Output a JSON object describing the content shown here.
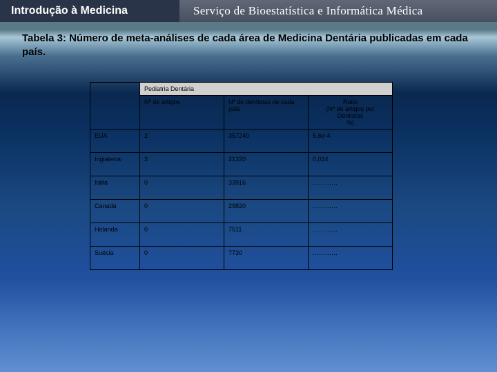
{
  "header": {
    "left_title": "Introdução à Medicina",
    "service": "Serviço de Bioestatística e Informática Médica"
  },
  "table": {
    "title": "Tabela 3: Número de meta-análises de cada área de Medicina Dentária publicadas em cada país.",
    "category_header": "Pediatria Dentária",
    "columns": {
      "c1": "Nº de artigos",
      "c2": "Nº de dentistas de cada país",
      "c3_line1": "Ratio",
      "c3_line2": "(Nº de artigos por Dentistas",
      "c3_line3": "%)"
    },
    "rows": [
      {
        "country": "EUA",
        "articles": "2",
        "dentists": "357240",
        "ratio": "5,6e-4"
      },
      {
        "country": "Inglaterra",
        "articles": "3",
        "dentists": "21320",
        "ratio": "0,014"
      },
      {
        "country": "Itália",
        "articles": "0",
        "dentists": "33916",
        "ratio": "…………"
      },
      {
        "country": "Canadá",
        "articles": "0",
        "dentists": "29820",
        "ratio": "…………"
      },
      {
        "country": "Holanda",
        "articles": "0",
        "dentists": "7511",
        "ratio": "…………"
      },
      {
        "country": "Suécia",
        "articles": "0",
        "dentists": "7730",
        "ratio": "…………"
      }
    ]
  },
  "style": {
    "header_bg": "#d0d0d0",
    "border_color": "#000000",
    "text_color": "#000000"
  }
}
